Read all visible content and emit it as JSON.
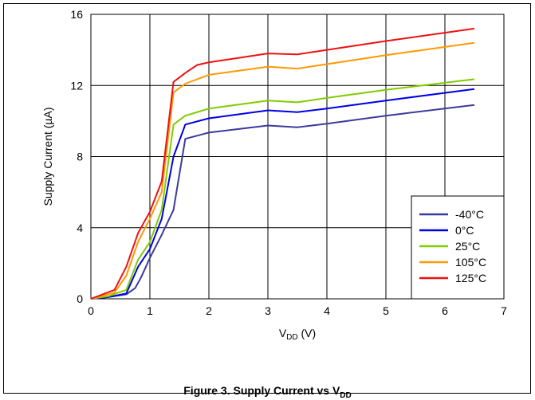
{
  "chart_data": {
    "type": "line",
    "xlabel_main": "V",
    "xlabel_sub": "DD",
    "xlabel_unit": " (V)",
    "ylabel": "Supply Current (µA)",
    "xlim": [
      0,
      7
    ],
    "ylim": [
      0,
      16
    ],
    "x_ticks": [
      "0",
      "1",
      "2",
      "3",
      "4",
      "5",
      "6",
      "7"
    ],
    "y_ticks": [
      "0",
      "4",
      "8",
      "12",
      "16"
    ],
    "grid": true,
    "legend_position": "bottom-right",
    "series": [
      {
        "name": "-40°C",
        "color": "#3b3b9e",
        "points": [
          [
            0,
            0
          ],
          [
            0.3,
            0.1
          ],
          [
            0.6,
            0.25
          ],
          [
            0.75,
            0.6
          ],
          [
            0.85,
            1.2
          ],
          [
            1.0,
            2.3
          ],
          [
            1.2,
            3.6
          ],
          [
            1.4,
            5.0
          ],
          [
            1.6,
            9.0
          ],
          [
            2.0,
            9.35
          ],
          [
            3.0,
            9.75
          ],
          [
            3.5,
            9.65
          ],
          [
            4.0,
            9.85
          ],
          [
            5.0,
            10.3
          ],
          [
            6.5,
            10.9
          ]
        ]
      },
      {
        "name": "0°C",
        "color": "#0000e6",
        "points": [
          [
            0,
            0
          ],
          [
            0.3,
            0.1
          ],
          [
            0.6,
            0.3
          ],
          [
            0.8,
            1.8
          ],
          [
            1.0,
            2.8
          ],
          [
            1.2,
            4.5
          ],
          [
            1.4,
            8.0
          ],
          [
            1.6,
            9.8
          ],
          [
            2.0,
            10.15
          ],
          [
            3.0,
            10.6
          ],
          [
            3.5,
            10.5
          ],
          [
            4.0,
            10.7
          ],
          [
            5.0,
            11.15
          ],
          [
            6.5,
            11.8
          ]
        ]
      },
      {
        "name": "25°C",
        "color": "#80cc00",
        "points": [
          [
            0,
            0
          ],
          [
            0.3,
            0.15
          ],
          [
            0.6,
            0.5
          ],
          [
            0.8,
            2.2
          ],
          [
            1.0,
            3.2
          ],
          [
            1.2,
            5.0
          ],
          [
            1.4,
            9.8
          ],
          [
            1.6,
            10.3
          ],
          [
            2.0,
            10.7
          ],
          [
            3.0,
            11.15
          ],
          [
            3.5,
            11.05
          ],
          [
            4.0,
            11.3
          ],
          [
            5.0,
            11.75
          ],
          [
            6.5,
            12.35
          ]
        ]
      },
      {
        "name": "105°C",
        "color": "#ff9900",
        "points": [
          [
            0,
            0
          ],
          [
            0.4,
            0.35
          ],
          [
            0.6,
            1.3
          ],
          [
            0.8,
            3.2
          ],
          [
            1.0,
            4.5
          ],
          [
            1.2,
            6.0
          ],
          [
            1.4,
            11.6
          ],
          [
            1.6,
            12.1
          ],
          [
            2.0,
            12.6
          ],
          [
            3.0,
            13.05
          ],
          [
            3.5,
            12.95
          ],
          [
            4.0,
            13.2
          ],
          [
            5.0,
            13.7
          ],
          [
            6.5,
            14.4
          ]
        ]
      },
      {
        "name": "125°C",
        "color": "#ee1111",
        "points": [
          [
            0,
            0
          ],
          [
            0.4,
            0.5
          ],
          [
            0.6,
            1.8
          ],
          [
            0.8,
            3.7
          ],
          [
            1.0,
            4.9
          ],
          [
            1.2,
            6.6
          ],
          [
            1.4,
            12.2
          ],
          [
            1.6,
            12.7
          ],
          [
            1.8,
            13.15
          ],
          [
            2.0,
            13.3
          ],
          [
            3.0,
            13.8
          ],
          [
            3.5,
            13.75
          ],
          [
            4.0,
            14.0
          ],
          [
            5.0,
            14.5
          ],
          [
            6.5,
            15.2
          ]
        ]
      }
    ]
  },
  "caption": {
    "prefix": "Figure 3. Supply Current vs V",
    "sub": "DD"
  }
}
